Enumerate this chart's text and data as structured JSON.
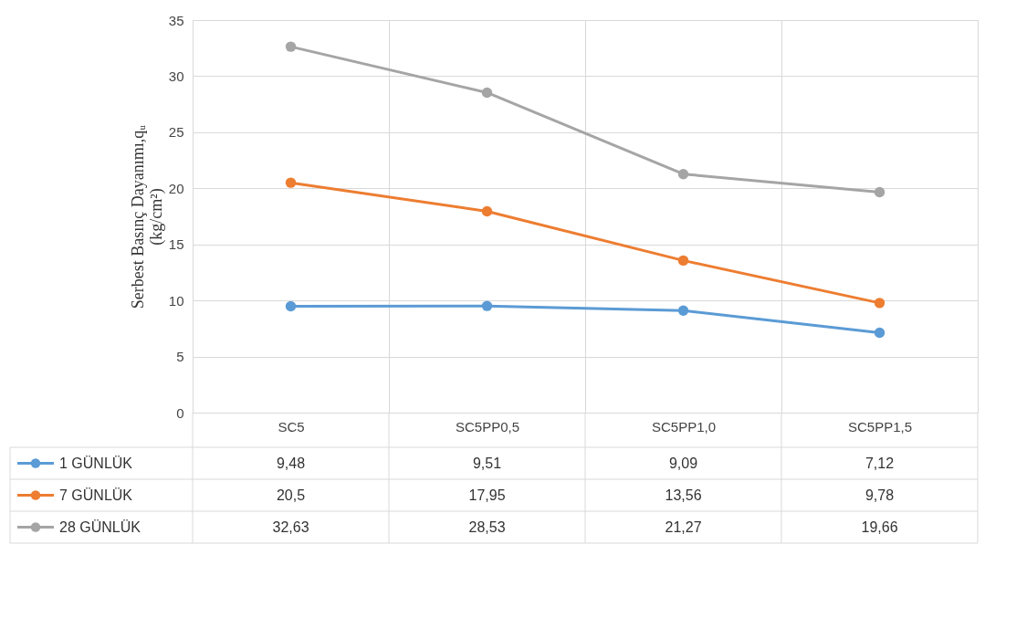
{
  "chart_data": {
    "type": "line",
    "ylabel": "Serbest Basınç Dayanımı,qᵤ\n(kg/cm²)",
    "categories": [
      "SC5",
      "SC5PP0,5",
      "SC5PP1,0",
      "SC5PP1,5"
    ],
    "series": [
      {
        "name": "1 GÜNLÜK",
        "color": "#5b9bd5",
        "values": [
          9.48,
          9.51,
          9.09,
          7.12
        ],
        "value_labels": [
          "9,48",
          "9,51",
          "9,09",
          "7,12"
        ]
      },
      {
        "name": "7 GÜNLÜK",
        "color": "#ed7d31",
        "values": [
          20.5,
          17.95,
          13.56,
          9.78
        ],
        "value_labels": [
          "20,5",
          "17,95",
          "13,56",
          "9,78"
        ]
      },
      {
        "name": "28 GÜNLÜK",
        "color": "#a5a5a5",
        "values": [
          32.63,
          28.53,
          21.27,
          19.66
        ],
        "value_labels": [
          "32,63",
          "28,53",
          "21,27",
          "19,66"
        ]
      }
    ],
    "ylim": [
      0,
      35
    ],
    "yticks": [
      0,
      5,
      10,
      15,
      20,
      25,
      30,
      35
    ],
    "grid": true,
    "legend": "bottom",
    "marker": "circle",
    "line_style": "solid"
  }
}
